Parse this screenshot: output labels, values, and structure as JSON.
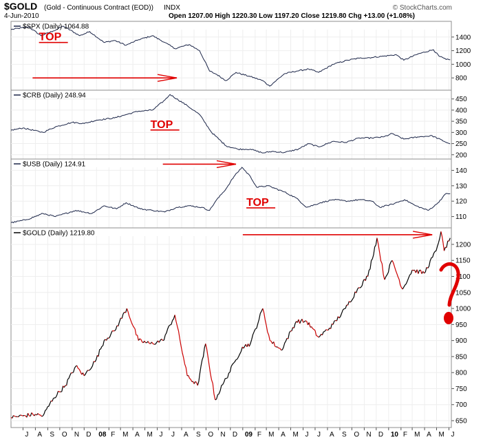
{
  "header": {
    "symbol": "$GOLD",
    "description": "(Gold - Continuous Contract (EOD))",
    "exchange": "INDX",
    "date": "4-Jun-2010",
    "quote": "Open 1207.00 High 1220.30 Low 1197.20 Close 1219.80 Chg +13.00 (+1.08%)",
    "watermark": "© StockCharts.com"
  },
  "colors": {
    "line_black": "#000000",
    "line_navy": "#1a2447",
    "gold_down": "#cc0000",
    "annotation_red": "#e00000",
    "panel_border": "#8c8c8c",
    "header_bg": "#e8eef6"
  },
  "chart_data": [
    {
      "type": "line",
      "label": "$SPX (Daily) 1064.88",
      "ylim": [
        650,
        1600
      ],
      "y_ticks": [
        800,
        1000,
        1200,
        1400
      ],
      "annotations": [
        {
          "type": "text",
          "text": "TOP",
          "x": "2007-08-10",
          "y": 1350
        },
        {
          "type": "arrow",
          "from": [
            "2007-07-25",
            800
          ],
          "to": [
            "2008-07-20",
            800
          ]
        }
      ],
      "series": [
        {
          "name": "$SPX",
          "points": [
            [
              "2007-06-01",
              1510
            ],
            [
              "2007-07-15",
              1550
            ],
            [
              "2007-08-15",
              1420
            ],
            [
              "2007-09-15",
              1490
            ],
            [
              "2007-10-10",
              1560
            ],
            [
              "2007-11-20",
              1420
            ],
            [
              "2007-12-15",
              1480
            ],
            [
              "2008-01-20",
              1320
            ],
            [
              "2008-02-15",
              1350
            ],
            [
              "2008-03-15",
              1280
            ],
            [
              "2008-04-15",
              1360
            ],
            [
              "2008-05-20",
              1420
            ],
            [
              "2008-06-20",
              1320
            ],
            [
              "2008-07-15",
              1230
            ],
            [
              "2008-08-20",
              1290
            ],
            [
              "2008-09-15",
              1200
            ],
            [
              "2008-10-10",
              900
            ],
            [
              "2008-10-28",
              850
            ],
            [
              "2008-11-20",
              760
            ],
            [
              "2008-12-15",
              880
            ],
            [
              "2009-01-20",
              820
            ],
            [
              "2009-02-20",
              760
            ],
            [
              "2009-03-09",
              680
            ],
            [
              "2009-04-15",
              860
            ],
            [
              "2009-05-15",
              900
            ],
            [
              "2009-06-15",
              930
            ],
            [
              "2009-07-10",
              880
            ],
            [
              "2009-08-15",
              1000
            ],
            [
              "2009-09-20",
              1060
            ],
            [
              "2009-10-20",
              1090
            ],
            [
              "2009-11-20",
              1100
            ],
            [
              "2009-12-20",
              1120
            ],
            [
              "2010-01-20",
              1140
            ],
            [
              "2010-02-08",
              1060
            ],
            [
              "2010-03-15",
              1150
            ],
            [
              "2010-04-23",
              1215
            ],
            [
              "2010-05-07",
              1120
            ],
            [
              "2010-05-25",
              1070
            ],
            [
              "2010-06-04",
              1064.88
            ]
          ]
        }
      ]
    },
    {
      "type": "line",
      "label": "$CRB (Daily) 248.94",
      "ylim": [
        190,
        480
      ],
      "y_ticks": [
        200,
        250,
        300,
        350,
        400,
        450
      ],
      "annotations": [
        {
          "type": "text",
          "text": "TOP",
          "x": "2008-05-15",
          "y": 320
        }
      ],
      "series": [
        {
          "name": "$CRB",
          "points": [
            [
              "2007-06-01",
              310
            ],
            [
              "2007-07-01",
              320
            ],
            [
              "2007-08-20",
              300
            ],
            [
              "2007-09-20",
              325
            ],
            [
              "2007-11-01",
              345
            ],
            [
              "2007-12-01",
              340
            ],
            [
              "2008-01-01",
              355
            ],
            [
              "2008-02-15",
              365
            ],
            [
              "2008-03-15",
              380
            ],
            [
              "2008-04-15",
              395
            ],
            [
              "2008-05-20",
              400
            ],
            [
              "2008-06-20",
              445
            ],
            [
              "2008-07-03",
              470
            ],
            [
              "2008-08-15",
              420
            ],
            [
              "2008-09-15",
              380
            ],
            [
              "2008-10-15",
              300
            ],
            [
              "2008-11-20",
              240
            ],
            [
              "2008-12-20",
              225
            ],
            [
              "2009-01-20",
              225
            ],
            [
              "2009-02-20",
              208
            ],
            [
              "2009-03-15",
              215
            ],
            [
              "2009-04-15",
              210
            ],
            [
              "2009-05-20",
              225
            ],
            [
              "2009-06-15",
              250
            ],
            [
              "2009-07-10",
              235
            ],
            [
              "2009-08-15",
              260
            ],
            [
              "2009-09-15",
              255
            ],
            [
              "2009-10-20",
              275
            ],
            [
              "2009-11-20",
              275
            ],
            [
              "2009-12-20",
              280
            ],
            [
              "2010-01-10",
              295
            ],
            [
              "2010-02-08",
              270
            ],
            [
              "2010-03-15",
              280
            ],
            [
              "2010-04-20",
              285
            ],
            [
              "2010-05-20",
              260
            ],
            [
              "2010-06-04",
              248.94
            ]
          ]
        }
      ]
    },
    {
      "type": "line",
      "label": "$USB (Daily) 124.91",
      "ylim": [
        104,
        146
      ],
      "y_ticks": [
        110,
        120,
        130,
        140
      ],
      "annotations": [
        {
          "type": "arrow",
          "from": [
            "2008-06-15",
            144
          ],
          "to": [
            "2008-12-15",
            144
          ]
        },
        {
          "type": "text",
          "text": "TOP",
          "x": "2009-01-10",
          "y": 117
        }
      ],
      "series": [
        {
          "name": "$USB",
          "points": [
            [
              "2007-06-01",
              106
            ],
            [
              "2007-07-10",
              108
            ],
            [
              "2007-08-20",
              112
            ],
            [
              "2007-09-20",
              110
            ],
            [
              "2007-11-10",
              114
            ],
            [
              "2007-12-20",
              112
            ],
            [
              "2008-01-20",
              117
            ],
            [
              "2008-02-20",
              115
            ],
            [
              "2008-03-15",
              119
            ],
            [
              "2008-04-20",
              115
            ],
            [
              "2008-05-20",
              114
            ],
            [
              "2008-06-20",
              113
            ],
            [
              "2008-07-20",
              116
            ],
            [
              "2008-08-20",
              117
            ],
            [
              "2008-09-20",
              116
            ],
            [
              "2008-10-10",
              114
            ],
            [
              "2008-10-25",
              120
            ],
            [
              "2008-11-20",
              128
            ],
            [
              "2008-12-10",
              136
            ],
            [
              "2008-12-30",
              142
            ],
            [
              "2009-01-20",
              136
            ],
            [
              "2009-02-05",
              129
            ],
            [
              "2009-03-05",
              130
            ],
            [
              "2009-04-15",
              126
            ],
            [
              "2009-05-15",
              122
            ],
            [
              "2009-06-10",
              116
            ],
            [
              "2009-07-15",
              119
            ],
            [
              "2009-08-15",
              121
            ],
            [
              "2009-09-20",
              120
            ],
            [
              "2009-10-20",
              121
            ],
            [
              "2009-11-20",
              120
            ],
            [
              "2009-12-10",
              116
            ],
            [
              "2010-01-10",
              118
            ],
            [
              "2010-02-10",
              121
            ],
            [
              "2010-03-10",
              117
            ],
            [
              "2010-04-10",
              114
            ],
            [
              "2010-05-01",
              118
            ],
            [
              "2010-05-25",
              125
            ],
            [
              "2010-06-04",
              124.91
            ]
          ]
        }
      ]
    },
    {
      "type": "line",
      "label": "$GOLD (Daily) 1219.80",
      "ylim": [
        635,
        1245
      ],
      "y_ticks": [
        650,
        700,
        750,
        800,
        850,
        900,
        950,
        1000,
        1050,
        1100,
        1150,
        1200
      ],
      "annotations": [
        {
          "type": "arrow",
          "from": [
            "2009-01-01",
            1230
          ],
          "to": [
            "2010-04-20",
            1230
          ]
        },
        {
          "type": "text",
          "text": "?",
          "x": "2010-07-01",
          "y": 1050
        }
      ],
      "series": [
        {
          "name": "$GOLD",
          "points": [
            [
              "2007-06-01",
              660
            ],
            [
              "2007-07-01",
              665
            ],
            [
              "2007-08-01",
              670
            ],
            [
              "2007-08-20",
              665
            ],
            [
              "2007-09-15",
              720
            ],
            [
              "2007-10-15",
              760
            ],
            [
              "2007-11-10",
              820
            ],
            [
              "2007-12-01",
              790
            ],
            [
              "2007-12-31",
              840
            ],
            [
              "2008-01-20",
              900
            ],
            [
              "2008-02-15",
              930
            ],
            [
              "2008-03-17",
              1000
            ],
            [
              "2008-04-15",
              900
            ],
            [
              "2008-05-15",
              890
            ],
            [
              "2008-06-15",
              900
            ],
            [
              "2008-07-15",
              980
            ],
            [
              "2008-08-15",
              790
            ],
            [
              "2008-09-10",
              760
            ],
            [
              "2008-09-30",
              890
            ],
            [
              "2008-10-24",
              715
            ],
            [
              "2008-11-15",
              770
            ],
            [
              "2008-12-15",
              840
            ],
            [
              "2008-12-31",
              880
            ],
            [
              "2009-01-20",
              890
            ],
            [
              "2009-02-20",
              1000
            ],
            [
              "2009-03-10",
              900
            ],
            [
              "2009-04-07",
              870
            ],
            [
              "2009-05-15",
              960
            ],
            [
              "2009-06-10",
              960
            ],
            [
              "2009-07-10",
              910
            ],
            [
              "2009-08-15",
              950
            ],
            [
              "2009-09-15",
              1000
            ],
            [
              "2009-10-15",
              1060
            ],
            [
              "2009-11-10",
              1100
            ],
            [
              "2009-12-03",
              1220
            ],
            [
              "2009-12-22",
              1090
            ],
            [
              "2010-01-10",
              1150
            ],
            [
              "2010-02-05",
              1060
            ],
            [
              "2010-03-01",
              1120
            ],
            [
              "2010-03-31",
              1110
            ],
            [
              "2010-04-30",
              1180
            ],
            [
              "2010-05-12",
              1240
            ],
            [
              "2010-05-20",
              1180
            ],
            [
              "2010-06-04",
              1219.8
            ]
          ]
        }
      ]
    }
  ],
  "x_axis": {
    "start": "2007-06-01",
    "end": "2010-06-07",
    "ticks": [
      {
        "date": "2007-07-01",
        "label": "J"
      },
      {
        "date": "2007-08-01",
        "label": "A"
      },
      {
        "date": "2007-09-01",
        "label": "S"
      },
      {
        "date": "2007-10-01",
        "label": "O"
      },
      {
        "date": "2007-11-01",
        "label": "N"
      },
      {
        "date": "2007-12-01",
        "label": "D"
      },
      {
        "date": "2008-01-01",
        "label": "08"
      },
      {
        "date": "2008-02-01",
        "label": "F"
      },
      {
        "date": "2008-03-01",
        "label": "M"
      },
      {
        "date": "2008-04-01",
        "label": "A"
      },
      {
        "date": "2008-05-01",
        "label": "M"
      },
      {
        "date": "2008-06-01",
        "label": "J"
      },
      {
        "date": "2008-07-01",
        "label": "J"
      },
      {
        "date": "2008-08-01",
        "label": "A"
      },
      {
        "date": "2008-09-01",
        "label": "S"
      },
      {
        "date": "2008-10-01",
        "label": "O"
      },
      {
        "date": "2008-11-01",
        "label": "N"
      },
      {
        "date": "2008-12-01",
        "label": "D"
      },
      {
        "date": "2009-01-01",
        "label": "09"
      },
      {
        "date": "2009-02-01",
        "label": "F"
      },
      {
        "date": "2009-03-01",
        "label": "M"
      },
      {
        "date": "2009-04-01",
        "label": "A"
      },
      {
        "date": "2009-05-01",
        "label": "M"
      },
      {
        "date": "2009-06-01",
        "label": "J"
      },
      {
        "date": "2009-07-01",
        "label": "J"
      },
      {
        "date": "2009-08-01",
        "label": "A"
      },
      {
        "date": "2009-09-01",
        "label": "S"
      },
      {
        "date": "2009-10-01",
        "label": "O"
      },
      {
        "date": "2009-11-01",
        "label": "N"
      },
      {
        "date": "2009-12-01",
        "label": "D"
      },
      {
        "date": "2010-01-01",
        "label": "10"
      },
      {
        "date": "2010-02-01",
        "label": "F"
      },
      {
        "date": "2010-03-01",
        "label": "M"
      },
      {
        "date": "2010-04-01",
        "label": "A"
      },
      {
        "date": "2010-05-01",
        "label": "M"
      },
      {
        "date": "2010-06-01",
        "label": "J"
      }
    ]
  }
}
